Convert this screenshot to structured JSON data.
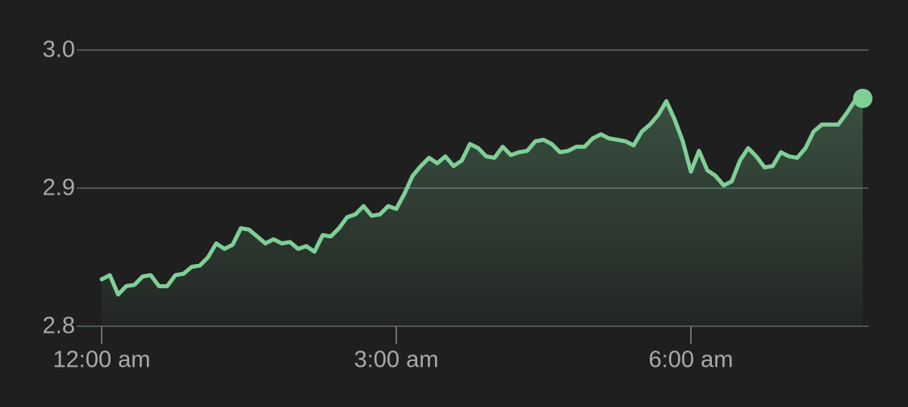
{
  "chart_data": {
    "type": "line",
    "categories": [
      "12:00 am",
      null,
      null,
      null,
      null,
      null,
      null,
      null,
      null,
      null,
      null,
      null,
      null,
      null,
      null,
      null,
      null,
      null,
      null,
      null,
      null,
      null,
      null,
      null,
      null,
      null,
      null,
      null,
      null,
      null,
      null,
      null,
      null,
      null,
      null,
      null,
      "3:00 am",
      null,
      null,
      null,
      null,
      null,
      null,
      null,
      null,
      null,
      null,
      null,
      null,
      null,
      null,
      null,
      null,
      null,
      null,
      null,
      null,
      null,
      null,
      null,
      null,
      null,
      null,
      null,
      null,
      null,
      null,
      null,
      null,
      null,
      null,
      null,
      "6:00 am",
      null,
      null,
      null,
      null,
      null,
      null,
      null,
      null,
      null,
      null,
      null,
      null,
      null,
      null,
      null,
      null,
      null,
      null,
      null,
      null,
      null
    ],
    "series": [
      {
        "color": "#7fcf97",
        "values": [
          2.834,
          2.837,
          2.823,
          2.829,
          2.83,
          2.836,
          2.837,
          2.829,
          2.829,
          2.837,
          2.838,
          2.843,
          2.844,
          2.85,
          2.86,
          2.856,
          2.859,
          2.871,
          2.87,
          2.865,
          2.86,
          2.863,
          2.86,
          2.861,
          2.856,
          2.858,
          2.854,
          2.866,
          2.865,
          2.871,
          2.879,
          2.881,
          2.887,
          2.88,
          2.881,
          2.887,
          2.885,
          2.896,
          2.909,
          2.916,
          2.922,
          2.918,
          2.923,
          2.916,
          2.92,
          2.932,
          2.929,
          2.923,
          2.922,
          2.93,
          2.924,
          2.926,
          2.927,
          2.934,
          2.935,
          2.932,
          2.926,
          2.927,
          2.93,
          2.93,
          2.936,
          2.939,
          2.936,
          2.935,
          2.934,
          2.931,
          2.941,
          2.946,
          2.953,
          2.963,
          2.95,
          2.934,
          2.912,
          2.927,
          2.913,
          2.909,
          2.902,
          2.905,
          2.92,
          2.929,
          2.923,
          2.915,
          2.916,
          2.926,
          2.923,
          2.922,
          2.929,
          2.941,
          2.946,
          2.946,
          2.946,
          2.954,
          2.963,
          2.965
        ]
      }
    ],
    "ylim": [
      2.8,
      3.0
    ],
    "yticks": [
      {
        "value": 2.8,
        "label": "2.8"
      },
      {
        "value": 2.9,
        "label": "2.9"
      },
      {
        "value": 3.0,
        "label": "3.0"
      }
    ],
    "grid": true
  }
}
